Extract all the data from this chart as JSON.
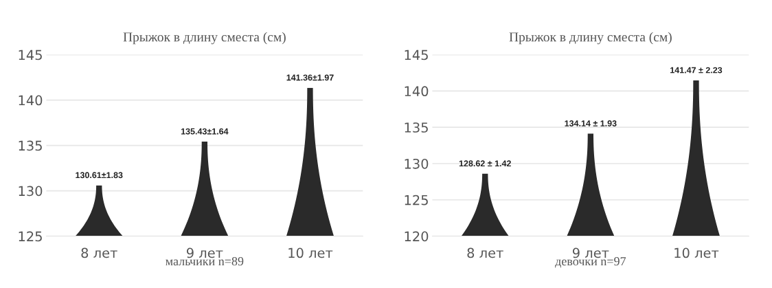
{
  "chart_data": [
    {
      "type": "bar",
      "title": "Прыжок в длину сместа (см)",
      "xlabel": "мальчики n=89",
      "categories": [
        "8 лет",
        "9 лет",
        "10 лет"
      ],
      "values": [
        130.61,
        135.43,
        141.36
      ],
      "value_labels": [
        "130.61±1.83",
        "135.43±1.64",
        "141.36±1.97"
      ],
      "color": "#2a2a2a",
      "ylim": [
        125,
        145
      ],
      "yticks": [
        125,
        130,
        135,
        140,
        145
      ],
      "grid": "y"
    },
    {
      "type": "bar",
      "title": "Прыжок в длину сместа (см)",
      "xlabel": "девочки n=97",
      "categories": [
        "8 лет",
        "9 лет",
        "10 лет"
      ],
      "values": [
        128.62,
        134.14,
        141.47
      ],
      "value_labels": [
        "128.62 ± 1.42",
        "134.14 ± 1.93",
        "141.47 ± 2.23"
      ],
      "color": "#2a2a2a",
      "ylim": [
        120,
        145
      ],
      "yticks": [
        120,
        125,
        130,
        135,
        140,
        145
      ],
      "grid": "y"
    }
  ]
}
